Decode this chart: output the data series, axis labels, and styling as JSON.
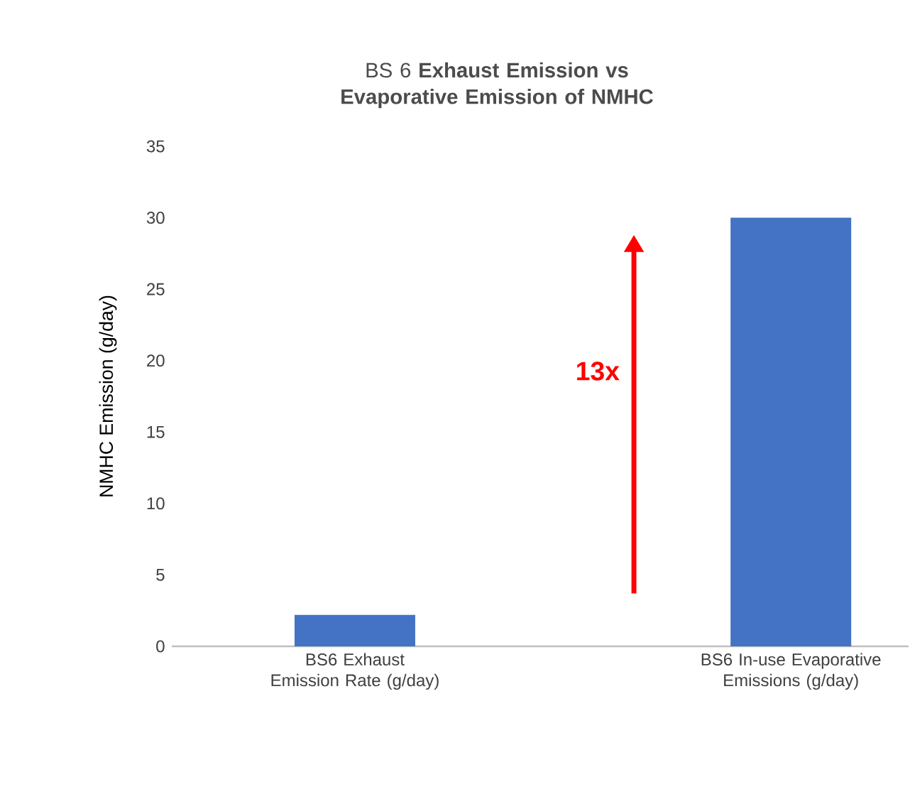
{
  "chart_data": {
    "type": "bar",
    "title": "BS 6 **Exhaust Emission vs Evaporative Emission of NMHC**",
    "ylabel": "NMHC Emission (g/day)",
    "categories": [
      "BS6 Exhaust Emission Rate (g/day)",
      "BS6 In-use Evaporative Emissions (g/day)"
    ],
    "values": [
      2.2,
      30
    ],
    "color": "#4472c4",
    "ylim": [
      0,
      35
    ],
    "yticks": [
      0,
      5,
      10,
      15,
      20,
      25,
      30,
      35
    ],
    "annotations": [
      "13x"
    ]
  }
}
